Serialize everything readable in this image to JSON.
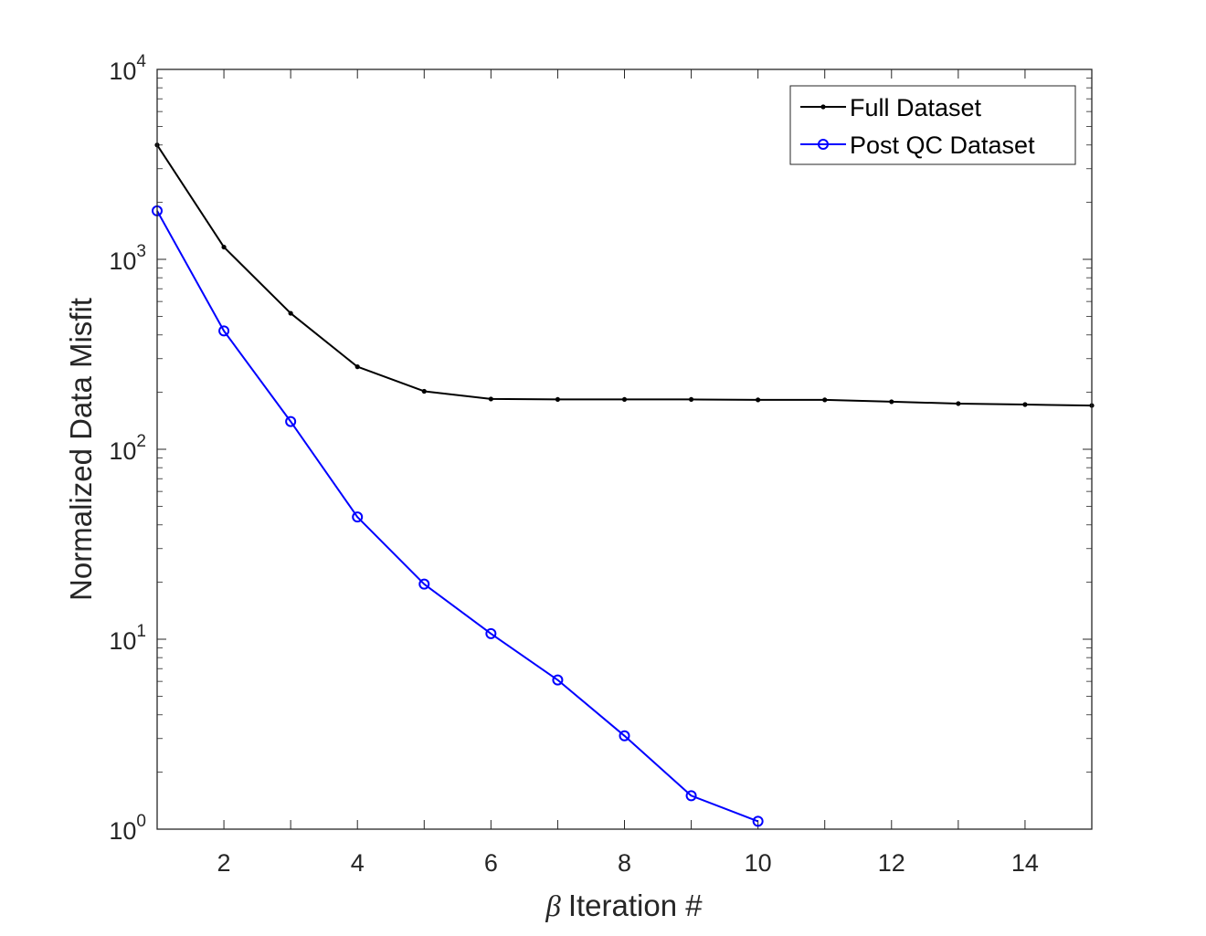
{
  "chart_data": {
    "type": "line",
    "title": "",
    "xlabel": "Iteration #",
    "xlabel_symbol": "β",
    "ylabel": "Normalized Data Misfit",
    "xlim": [
      1,
      15
    ],
    "ylim": [
      1,
      10000
    ],
    "yscale": "log",
    "grid": false,
    "legend_position": "top-right",
    "x_ticks": [
      2,
      4,
      6,
      8,
      10,
      12,
      14
    ],
    "y_ticks": [
      {
        "value": 1,
        "base": "10",
        "exp": "0"
      },
      {
        "value": 10,
        "base": "10",
        "exp": "1"
      },
      {
        "value": 100,
        "base": "10",
        "exp": "2"
      },
      {
        "value": 1000,
        "base": "10",
        "exp": "3"
      },
      {
        "value": 10000,
        "base": "10",
        "exp": "4"
      }
    ],
    "series": [
      {
        "name": "Full Dataset",
        "color": "#000000",
        "marker": "dot",
        "x": [
          1,
          2,
          3,
          4,
          5,
          6,
          7,
          8,
          9,
          10,
          11,
          12,
          13,
          14,
          15
        ],
        "values": [
          4000,
          1160,
          520,
          272,
          202,
          184,
          183,
          183,
          183,
          182,
          182,
          178,
          174,
          172,
          170
        ]
      },
      {
        "name": "Post QC Dataset",
        "color": "#0000ff",
        "marker": "circle",
        "x": [
          1,
          2,
          3,
          4,
          5,
          6,
          7,
          8,
          9,
          10
        ],
        "values": [
          1800,
          420,
          140,
          44,
          19.5,
          10.7,
          6.1,
          3.1,
          1.5,
          1.1
        ]
      }
    ]
  }
}
